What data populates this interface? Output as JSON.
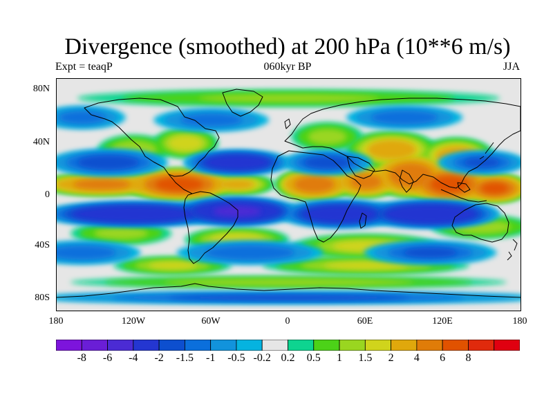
{
  "figure": {
    "title": "Divergence (smoothed) at 200 hPa (10**6 m/s)",
    "left_label": "Expt = teaqP",
    "center_label": "060kyr BP",
    "right_label": "JJA"
  },
  "axes": {
    "lat_ticks": [
      {
        "value": 80,
        "label": "80N"
      },
      {
        "value": 40,
        "label": "40N"
      },
      {
        "value": 0,
        "label": "0"
      },
      {
        "value": -40,
        "label": "40S"
      },
      {
        "value": -80,
        "label": "80S"
      }
    ],
    "lon_ticks": [
      {
        "value": -180,
        "label": "180"
      },
      {
        "value": -120,
        "label": "120W"
      },
      {
        "value": -60,
        "label": "60W"
      },
      {
        "value": 0,
        "label": "0"
      },
      {
        "value": 60,
        "label": "60E"
      },
      {
        "value": 120,
        "label": "120E"
      },
      {
        "value": 180,
        "label": "180"
      }
    ]
  },
  "colorbar": {
    "colors": [
      "#7d14dc",
      "#6a1ed6",
      "#4b2bd4",
      "#2436d1",
      "#0d4fcf",
      "#0b6fdc",
      "#1293dc",
      "#05b3e0",
      "#e6e6e6",
      "#0ed490",
      "#4cd218",
      "#9ad620",
      "#d0d41c",
      "#e0a80c",
      "#e07c08",
      "#e15200",
      "#e02a0c",
      "#e00010"
    ],
    "labels": [
      "-8",
      "-6",
      "-4",
      "-2",
      "-1.5",
      "-1",
      "-0.5",
      "-0.2",
      "0.2",
      "0.5",
      "1",
      "1.5",
      "2",
      "4",
      "6",
      "8"
    ]
  },
  "chart_data": {
    "type": "heatmap",
    "title": "Divergence (smoothed) at 200 hPa (10**6 m/s)",
    "units": "10**6 m/s",
    "x_range": [
      -180,
      180
    ],
    "y_range": [
      -90,
      90
    ],
    "levels": [
      -8,
      -6,
      -4,
      -2,
      -1.5,
      -1,
      -0.5,
      -0.2,
      0.2,
      0.5,
      1,
      1.5,
      2,
      4,
      6,
      8
    ],
    "features": [
      {
        "lon": -85,
        "lat": 8,
        "value": 6.5,
        "lon_width": 35,
        "lat_width": 10
      },
      {
        "lon": -145,
        "lat": 8,
        "value": 4.5,
        "lon_width": 40,
        "lat_width": 7
      },
      {
        "lon": -40,
        "lat": 8,
        "value": 2.2,
        "lon_width": 25,
        "lat_width": 7
      },
      {
        "lon": 20,
        "lat": 8,
        "value": 5,
        "lon_width": 25,
        "lat_width": 10
      },
      {
        "lon": 60,
        "lat": 10,
        "value": 4.5,
        "lon_width": 22,
        "lat_width": 10
      },
      {
        "lon": 95,
        "lat": 15,
        "value": 5.5,
        "lon_width": 25,
        "lat_width": 14
      },
      {
        "lon": 125,
        "lat": 8,
        "value": 6.5,
        "lon_width": 28,
        "lat_width": 12
      },
      {
        "lon": 160,
        "lat": 5,
        "value": 6,
        "lon_width": 22,
        "lat_width": 9
      },
      {
        "lon": 80,
        "lat": 35,
        "value": 2.5,
        "lon_width": 30,
        "lat_width": 12
      },
      {
        "lon": 130,
        "lat": 30,
        "value": 2.5,
        "lon_width": 25,
        "lat_width": 12
      },
      {
        "lon": -80,
        "lat": 40,
        "value": 1.8,
        "lon_width": 22,
        "lat_width": 10
      },
      {
        "lon": -120,
        "lat": 35,
        "value": 1.4,
        "lon_width": 25,
        "lat_width": 10
      },
      {
        "lon": 30,
        "lat": 45,
        "value": 1.2,
        "lon_width": 25,
        "lat_width": 10
      },
      {
        "lon": -40,
        "lat": -35,
        "value": 1.8,
        "lon_width": 35,
        "lat_width": 8
      },
      {
        "lon": 60,
        "lat": -40,
        "value": 1.6,
        "lon_width": 50,
        "lat_width": 8
      },
      {
        "lon": -130,
        "lat": -30,
        "value": 1.2,
        "lon_width": 35,
        "lat_width": 8
      },
      {
        "lon": 150,
        "lat": -25,
        "value": 1.3,
        "lon_width": 35,
        "lat_width": 8
      },
      {
        "lon": -90,
        "lat": -55,
        "value": 1.5,
        "lon_width": 40,
        "lat_width": 6
      },
      {
        "lon": 60,
        "lat": -55,
        "value": 1.5,
        "lon_width": 70,
        "lat_width": 6
      },
      {
        "lon": 0,
        "lat": -68,
        "value": 1.3,
        "lon_width": 150,
        "lat_width": 4
      },
      {
        "lon": 0,
        "lat": 75,
        "value": 1.0,
        "lon_width": 150,
        "lat_width": 6
      },
      {
        "lon": -120,
        "lat": -15,
        "value": -3.5,
        "lon_width": 60,
        "lat_width": 8
      },
      {
        "lon": -40,
        "lat": -13,
        "value": -4,
        "lon_width": 40,
        "lat_width": 9
      },
      {
        "lon": 40,
        "lat": -15,
        "value": -3,
        "lon_width": 40,
        "lat_width": 9
      },
      {
        "lon": 110,
        "lat": -15,
        "value": -3.5,
        "lon_width": 45,
        "lat_width": 9
      },
      {
        "lon": -40,
        "lat": 25,
        "value": -3,
        "lon_width": 35,
        "lat_width": 8
      },
      {
        "lon": -140,
        "lat": 25,
        "value": -1.8,
        "lon_width": 40,
        "lat_width": 9
      },
      {
        "lon": 30,
        "lat": 25,
        "value": -1.8,
        "lon_width": 30,
        "lat_width": 8
      },
      {
        "lon": 150,
        "lat": 25,
        "value": -1.5,
        "lon_width": 30,
        "lat_width": 8
      },
      {
        "lon": -30,
        "lat": -45,
        "value": -1.4,
        "lon_width": 50,
        "lat_width": 8
      },
      {
        "lon": 110,
        "lat": -45,
        "value": -1.5,
        "lon_width": 45,
        "lat_width": 8
      },
      {
        "lon": -160,
        "lat": -45,
        "value": -1.3,
        "lon_width": 40,
        "lat_width": 8
      },
      {
        "lon": 0,
        "lat": -80,
        "value": -1.6,
        "lon_width": 180,
        "lat_width": 4
      },
      {
        "lon": -60,
        "lat": 58,
        "value": -1.2,
        "lon_width": 40,
        "lat_width": 8
      },
      {
        "lon": 90,
        "lat": 60,
        "value": -1.3,
        "lon_width": 40,
        "lat_width": 8
      },
      {
        "lon": -160,
        "lat": 60,
        "value": -1.2,
        "lon_width": 30,
        "lat_width": 8
      }
    ]
  }
}
